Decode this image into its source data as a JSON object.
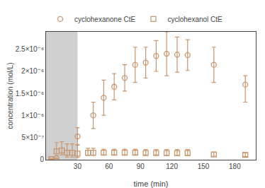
{
  "chart_data": {
    "type": "scatter",
    "title": "",
    "x_label": "time (min)",
    "y_label": "concentration (mol/L)",
    "xlim": [
      0,
      200
    ],
    "ylim": [
      -1e-08,
      2.9e-06
    ],
    "xticks": [
      30,
      60,
      90,
      120,
      150,
      180
    ],
    "yticks": [
      0,
      {
        "value": 5e-07,
        "label": "5×10⁻⁷"
      },
      {
        "value": 1e-06,
        "label": "1×10⁻⁶"
      },
      {
        "value": 1.5e-06,
        "label": "1.5×10⁻⁶"
      },
      {
        "value": 2e-06,
        "label": "2×10⁻⁶"
      },
      {
        "value": 2.5e-06,
        "label": "2.5×10⁻⁶"
      }
    ],
    "grid": false,
    "legend": "upper left",
    "shaded_region": {
      "x0": 0,
      "x1": 30,
      "color": "#c8c8c8"
    },
    "series": [
      {
        "name": "cyclohexanone CtE",
        "color": "#c8966e",
        "marker": "circle-open",
        "x": [
          5,
          10,
          30,
          45,
          55,
          65,
          75,
          85,
          95,
          105,
          115,
          125,
          135,
          160,
          190
        ],
        "values": [
          5e-09,
          2e-08,
          5.2e-07,
          1e-06,
          1.4e-06,
          1.65e-06,
          1.85e-06,
          2.15e-06,
          2.2e-06,
          2.35e-06,
          2.4e-06,
          2.38e-06,
          2.37e-06,
          2.15e-06,
          1.7e-06
        ],
        "error_lo": [
          3e-09,
          1e-08,
          2e-07,
          3e-07,
          4e-07,
          3e-07,
          3e-07,
          4e-07,
          3.5e-07,
          3.5e-07,
          5e-07,
          4e-07,
          3.5e-07,
          4e-07,
          4e-07
        ],
        "error_hi": [
          3e-09,
          1e-08,
          2e-07,
          3e-07,
          4e-07,
          3e-07,
          3e-07,
          4e-07,
          3.5e-07,
          3.5e-07,
          5e-07,
          4e-07,
          3.5e-07,
          4e-07,
          2e-07
        ]
      },
      {
        "name": "cyclohexanol CtE",
        "color": "#c8966e",
        "marker": "square-open",
        "x": [
          5,
          10,
          15,
          20,
          25,
          30,
          40,
          45,
          55,
          65,
          75,
          85,
          95,
          105,
          115,
          125,
          135,
          160,
          190
        ],
        "values": [
          5e-09,
          1.8e-07,
          2e-07,
          1.5e-07,
          1.5e-07,
          1.3e-07,
          1.5e-07,
          1.5e-07,
          1.5e-07,
          1.5e-07,
          1.5e-07,
          1.5e-07,
          1.4e-07,
          1.4e-07,
          1.4e-07,
          1.4e-07,
          1.4e-07,
          1.1e-07,
          1e-07
        ],
        "error_lo": [
          3e-09,
          1e-07,
          1e-07,
          1e-07,
          1e-07,
          9e-08,
          6e-08,
          6e-08,
          5e-08,
          5e-08,
          5e-08,
          5e-08,
          4e-08,
          4e-08,
          5e-08,
          5e-08,
          5e-08,
          4e-08,
          4e-08
        ],
        "error_hi": [
          3e-09,
          2e-07,
          2e-07,
          2e-07,
          2e-07,
          2e-07,
          1e-07,
          1e-07,
          8e-08,
          8e-08,
          8e-08,
          8e-08,
          8e-08,
          8e-08,
          8e-08,
          8e-08,
          8e-08,
          5e-08,
          5e-08
        ]
      }
    ]
  }
}
